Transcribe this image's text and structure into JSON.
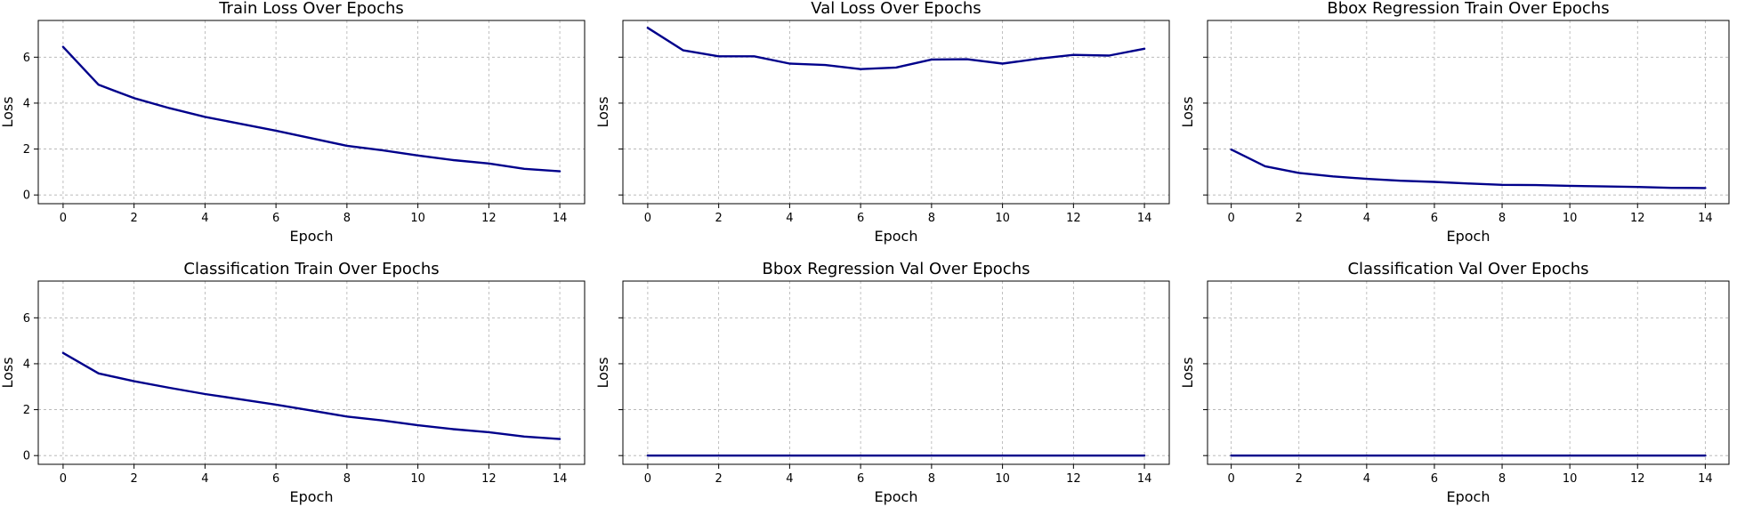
{
  "chart_data": [
    {
      "type": "line",
      "title": "Train Loss Over Epochs",
      "xlabel": "Epoch",
      "ylabel": "Loss",
      "x": [
        0,
        1,
        2,
        3,
        4,
        5,
        6,
        7,
        8,
        9,
        10,
        11,
        12,
        13,
        14
      ],
      "series": [
        {
          "values": [
            6.45,
            4.8,
            4.22,
            3.78,
            3.4,
            3.1,
            2.8,
            2.47,
            2.14,
            1.95,
            1.72,
            1.52,
            1.37,
            1.14,
            1.03
          ],
          "color": "#00008b"
        }
      ],
      "xlim": [
        -0.7,
        14.7
      ],
      "ylim": [
        -0.38,
        7.6
      ],
      "xticks": [
        0,
        2,
        4,
        6,
        8,
        10,
        12,
        14
      ],
      "yticks": [
        0,
        2,
        4,
        6
      ],
      "show_ytick_labels": true,
      "grid": true
    },
    {
      "type": "line",
      "title": "Val Loss Over Epochs",
      "xlabel": "Epoch",
      "ylabel": "Loss",
      "x": [
        0,
        1,
        2,
        3,
        4,
        5,
        6,
        7,
        8,
        9,
        10,
        11,
        12,
        13,
        14
      ],
      "series": [
        {
          "values": [
            7.28,
            6.3,
            6.04,
            6.04,
            5.72,
            5.66,
            5.48,
            5.55,
            5.9,
            5.91,
            5.72,
            5.93,
            6.1,
            6.07,
            6.37
          ],
          "color": "#00008b"
        }
      ],
      "xlim": [
        -0.7,
        14.7
      ],
      "ylim": [
        -0.38,
        7.6
      ],
      "xticks": [
        0,
        2,
        4,
        6,
        8,
        10,
        12,
        14
      ],
      "yticks": [
        0,
        2,
        4,
        6
      ],
      "show_ytick_labels": false,
      "grid": true
    },
    {
      "type": "line",
      "title": "Bbox Regression Train Over Epochs",
      "xlabel": "Epoch",
      "ylabel": "Loss",
      "x": [
        0,
        1,
        2,
        3,
        4,
        5,
        6,
        7,
        8,
        9,
        10,
        11,
        12,
        13,
        14
      ],
      "series": [
        {
          "values": [
            1.98,
            1.25,
            0.96,
            0.81,
            0.7,
            0.62,
            0.57,
            0.5,
            0.44,
            0.43,
            0.4,
            0.37,
            0.35,
            0.31,
            0.3
          ],
          "color": "#00008b"
        }
      ],
      "xlim": [
        -0.7,
        14.7
      ],
      "ylim": [
        -0.38,
        7.6
      ],
      "xticks": [
        0,
        2,
        4,
        6,
        8,
        10,
        12,
        14
      ],
      "yticks": [
        0,
        2,
        4,
        6
      ],
      "show_ytick_labels": false,
      "grid": true
    },
    {
      "type": "line",
      "title": "Classification Train Over Epochs",
      "xlabel": "Epoch",
      "ylabel": "Loss",
      "x": [
        0,
        1,
        2,
        3,
        4,
        5,
        6,
        7,
        8,
        9,
        10,
        11,
        12,
        13,
        14
      ],
      "series": [
        {
          "values": [
            4.47,
            3.58,
            3.24,
            2.95,
            2.68,
            2.45,
            2.22,
            1.96,
            1.7,
            1.53,
            1.32,
            1.15,
            1.02,
            0.83,
            0.72
          ],
          "color": "#00008b"
        }
      ],
      "xlim": [
        -0.7,
        14.7
      ],
      "ylim": [
        -0.38,
        7.6
      ],
      "xticks": [
        0,
        2,
        4,
        6,
        8,
        10,
        12,
        14
      ],
      "yticks": [
        0,
        2,
        4,
        6
      ],
      "show_ytick_labels": true,
      "grid": true
    },
    {
      "type": "line",
      "title": "Bbox Regression Val Over Epochs",
      "xlabel": "Epoch",
      "ylabel": "Loss",
      "x": [
        0,
        1,
        2,
        3,
        4,
        5,
        6,
        7,
        8,
        9,
        10,
        11,
        12,
        13,
        14
      ],
      "series": [
        {
          "values": [
            0,
            0,
            0,
            0,
            0,
            0,
            0,
            0,
            0,
            0,
            0,
            0,
            0,
            0,
            0
          ],
          "color": "#00008b"
        }
      ],
      "xlim": [
        -0.7,
        14.7
      ],
      "ylim": [
        -0.38,
        7.6
      ],
      "xticks": [
        0,
        2,
        4,
        6,
        8,
        10,
        12,
        14
      ],
      "yticks": [
        0,
        2,
        4,
        6
      ],
      "show_ytick_labels": false,
      "grid": true
    },
    {
      "type": "line",
      "title": "Classification Val Over Epochs",
      "xlabel": "Epoch",
      "ylabel": "Loss",
      "x": [
        0,
        1,
        2,
        3,
        4,
        5,
        6,
        7,
        8,
        9,
        10,
        11,
        12,
        13,
        14
      ],
      "series": [
        {
          "values": [
            0,
            0,
            0,
            0,
            0,
            0,
            0,
            0,
            0,
            0,
            0,
            0,
            0,
            0,
            0
          ],
          "color": "#00008b"
        }
      ],
      "xlim": [
        -0.7,
        14.7
      ],
      "ylim": [
        -0.38,
        7.6
      ],
      "xticks": [
        0,
        2,
        4,
        6,
        8,
        10,
        12,
        14
      ],
      "yticks": [
        0,
        2,
        4,
        6
      ],
      "show_ytick_labels": false,
      "grid": true
    }
  ]
}
